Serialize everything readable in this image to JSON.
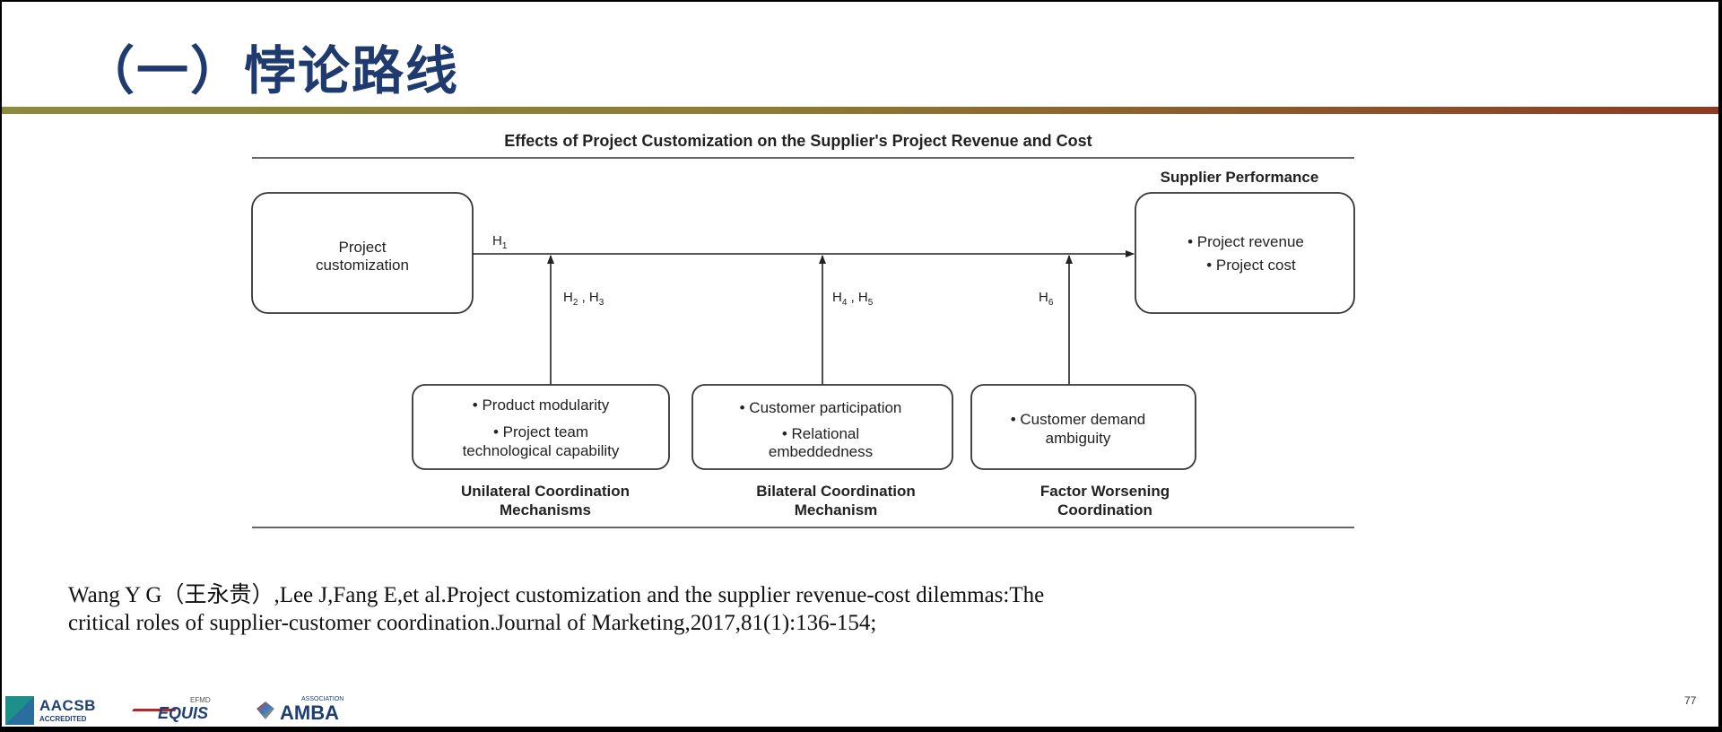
{
  "slide": {
    "title": "（一）悖论路线",
    "page_number": "77"
  },
  "diagram": {
    "caption": "Effects of Project Customization on the Supplier's Project Revenue and Cost",
    "source_box": {
      "lines": [
        "Project",
        "customization"
      ]
    },
    "target_heading": "Supplier Performance",
    "target_box": {
      "items": [
        "• Project revenue",
        "• Project cost"
      ]
    },
    "main_hypothesis": "H",
    "main_hypothesis_sub": "1",
    "moderators": [
      {
        "hypothesis": [
          {
            "h": "H",
            "sub": "2"
          },
          {
            "h": " , H",
            "sub": "3"
          }
        ],
        "lines": [
          "•  Product modularity",
          "• Project team",
          "technological capability"
        ],
        "label": [
          "Unilateral Coordination",
          "Mechanisms"
        ]
      },
      {
        "hypothesis": [
          {
            "h": "H",
            "sub": "4"
          },
          {
            "h": " , H",
            "sub": "5"
          }
        ],
        "lines": [
          "•  Customer participation",
          "• Relational",
          "embeddedness"
        ],
        "label": [
          "Bilateral Coordination",
          "Mechanism"
        ]
      },
      {
        "hypothesis": [
          {
            "h": "H",
            "sub": "6"
          }
        ],
        "lines": [
          "• Customer demand",
          "ambiguity"
        ],
        "label": [
          "Factor Worsening",
          "Coordination"
        ]
      }
    ]
  },
  "citation": {
    "line1": "Wang Y G（王永贵）,Lee J,Fang E,et al.Project customization and the supplier revenue-cost dilemmas:The",
    "line2": "critical roles of supplier-customer coordination.Journal of Marketing,2017,81(1):136-154;"
  },
  "footer": {
    "logos": {
      "aacsb": "AACSB",
      "aacsb_sub": "ACCREDITED",
      "equis": "EQUIS",
      "equis_top": "EFMD",
      "amba": "AMBA",
      "amba_top": "ASSOCIATION"
    }
  },
  "colors": {
    "title": "#1f3a6e",
    "rule_left": "#8c8b3a",
    "rule_right": "#8f3a22"
  }
}
